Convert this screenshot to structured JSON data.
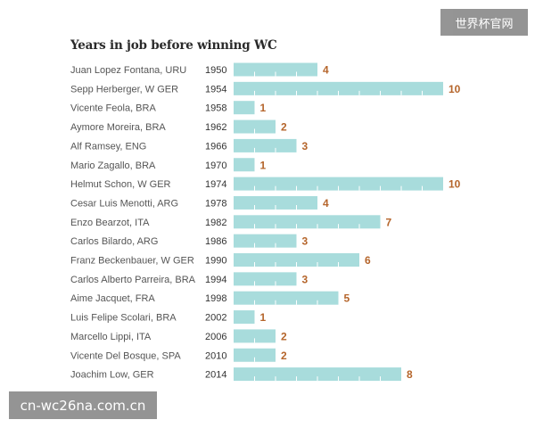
{
  "watermarks": {
    "top_right": "世界杯官网",
    "bottom_left": "cn-wc26na.com.cn"
  },
  "colors": {
    "bar": "#a8dcdc",
    "bar_divider": "#ffffff",
    "value_label": "#b5652b",
    "row_label": "#555555",
    "title": "#2a2a2a"
  },
  "chart_data": {
    "type": "bar",
    "orientation": "horizontal",
    "title": "Years in job before winning WC",
    "xlabel": "",
    "ylabel": "",
    "xlim": [
      0,
      10
    ],
    "grid": false,
    "legend": "none",
    "categories": [
      "Juan Lopez Fontana, URU",
      "Sepp Herberger, W GER",
      "Vicente Feola, BRA",
      "Aymore Moreira, BRA",
      "Alf Ramsey, ENG",
      "Mario Zagallo, BRA",
      "Helmut Schon, W GER",
      "Cesar Luis Menotti, ARG",
      "Enzo Bearzot, ITA",
      "Carlos Bilardo, ARG",
      "Franz Beckenbauer, W GER",
      "Carlos Alberto Parreira, BRA",
      "Aime Jacquet, FRA",
      "Luis Felipe Scolari, BRA",
      "Marcello Lippi, ITA",
      "Vicente Del Bosque, SPA",
      "Joachim Low, GER"
    ],
    "years": [
      "1950",
      "1954",
      "1958",
      "1962",
      "1966",
      "1970",
      "1974",
      "1978",
      "1982",
      "1986",
      "1990",
      "1994",
      "1998",
      "2002",
      "2006",
      "2010",
      "2014"
    ],
    "values": [
      4,
      10,
      1,
      2,
      3,
      1,
      10,
      4,
      7,
      3,
      6,
      3,
      5,
      1,
      2,
      2,
      8
    ]
  }
}
